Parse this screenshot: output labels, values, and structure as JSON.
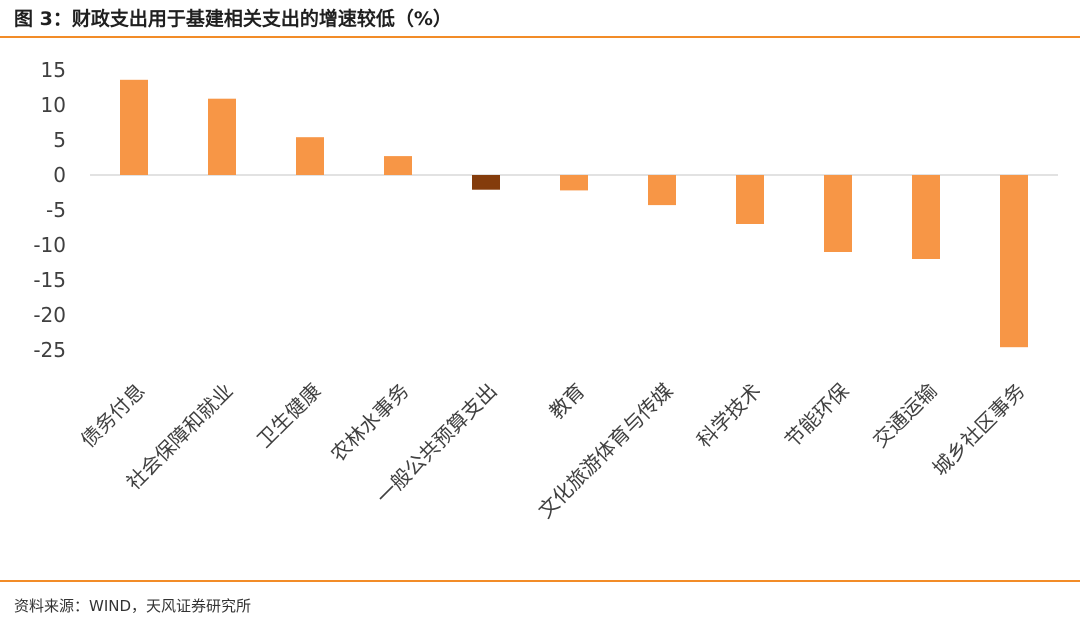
{
  "figure": {
    "title": "图 3：财政支出用于基建相关支出的增速较低（%）",
    "source": "资料来源：WIND，天风证券研究所"
  },
  "colors": {
    "rule": "#F28C28",
    "bar": "#F79646",
    "highlight_bar": "#843C0C",
    "zero_line": "#D9D9D9",
    "text": "#404040"
  },
  "chart_data": {
    "type": "bar",
    "categories": [
      "债务付息",
      "社会保障和就业",
      "卫生健康",
      "农林水事务",
      "一般公共预算支出",
      "教育",
      "文化旅游体育与传媒",
      "科学技术",
      "节能环保",
      "交通运输",
      "城乡社区事务"
    ],
    "values": [
      13.6,
      10.9,
      5.4,
      2.7,
      -2.1,
      -2.2,
      -4.3,
      -7.0,
      -11.0,
      -12.0,
      -24.6
    ],
    "highlight_index": 4,
    "yticks": [
      15,
      10,
      5,
      0,
      -5,
      -10,
      -15,
      -20,
      -25
    ],
    "ylim": [
      -25,
      15
    ],
    "grid": false,
    "legend": "none"
  }
}
